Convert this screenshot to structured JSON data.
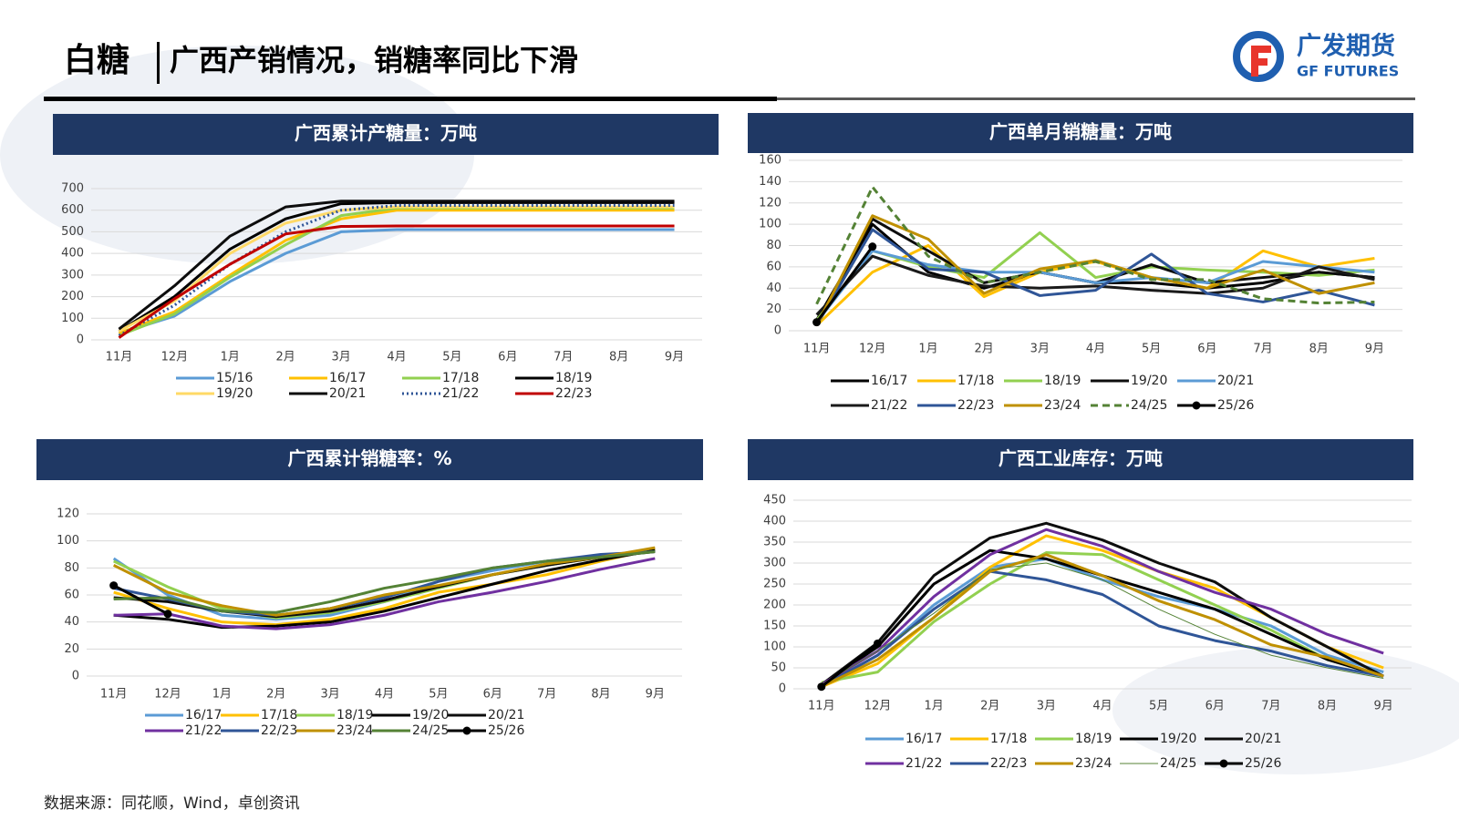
{
  "header": {
    "title": "白糖",
    "subtitle": "广西产销情况，销糖率同比下滑"
  },
  "logo": {
    "name": "广发期货",
    "en": "GF FUTURES"
  },
  "footer": {
    "source": "数据来源：同花顺，Wind，卓创资讯"
  },
  "chart_data": [
    {
      "type": "line",
      "title": "广西累计产糖量：万吨",
      "legend": "bottom",
      "grid": true,
      "categories": [
        "11月",
        "12月",
        "1月",
        "2月",
        "3月",
        "4月",
        "5月",
        "6月",
        "7月",
        "8月",
        "9月"
      ],
      "ylim": [
        0,
        700
      ],
      "yticks": [
        0,
        100,
        200,
        300,
        400,
        500,
        600,
        700
      ],
      "series": [
        {
          "name": "15/16",
          "color": "#5b9bd5",
          "values": [
            30,
            110,
            270,
            400,
            500,
            510,
            510,
            510,
            510,
            510,
            510
          ]
        },
        {
          "name": "16/17",
          "color": "#ffc000",
          "values": [
            30,
            130,
            300,
            460,
            560,
            600,
            600,
            600,
            600,
            600,
            600
          ]
        },
        {
          "name": "17/18",
          "color": "#92d050",
          "values": [
            20,
            120,
            290,
            440,
            575,
            610,
            610,
            610,
            610,
            610,
            610
          ]
        },
        {
          "name": "18/19",
          "color": "#000000",
          "values": [
            40,
            200,
            420,
            560,
            630,
            635,
            635,
            635,
            635,
            635,
            635
          ]
        },
        {
          "name": "19/20",
          "color": "#ffd966",
          "values": [
            40,
            180,
            400,
            540,
            600,
            615,
            615,
            615,
            615,
            615,
            615
          ]
        },
        {
          "name": "20/21",
          "color": "#0d0d0d",
          "values": [
            50,
            250,
            480,
            615,
            642,
            642,
            642,
            642,
            642,
            642,
            642
          ]
        },
        {
          "name": "21/22",
          "color": "#2f5597",
          "style": "dotted",
          "values": [
            20,
            160,
            350,
            500,
            600,
            622,
            622,
            622,
            622,
            622,
            622
          ]
        },
        {
          "name": "22/23",
          "color": "#c00000",
          "values": [
            10,
            190,
            350,
            490,
            525,
            527,
            527,
            527,
            527,
            527,
            527
          ]
        }
      ]
    },
    {
      "type": "line",
      "title": "广西单月销糖量：万吨",
      "legend": "bottom",
      "grid": true,
      "categories": [
        "11月",
        "12月",
        "1月",
        "2月",
        "3月",
        "4月",
        "5月",
        "6月",
        "7月",
        "8月",
        "9月"
      ],
      "ylim": [
        0,
        160
      ],
      "yticks": [
        0,
        20,
        40,
        60,
        80,
        100,
        120,
        140,
        160
      ],
      "series": [
        {
          "name": "16/17",
          "color": "#000000",
          "values": [
            10,
            100,
            55,
            40,
            55,
            45,
            45,
            40,
            45,
            55,
            50
          ]
        },
        {
          "name": "17/18",
          "color": "#ffc000",
          "values": [
            5,
            55,
            80,
            32,
            55,
            65,
            50,
            40,
            75,
            60,
            68
          ]
        },
        {
          "name": "18/19",
          "color": "#92d050",
          "values": [
            10,
            75,
            60,
            50,
            92,
            50,
            60,
            57,
            55,
            52,
            57
          ]
        },
        {
          "name": "19/20",
          "color": "#0d0d0d",
          "values": [
            5,
            105,
            75,
            45,
            55,
            45,
            62,
            45,
            50,
            55,
            50
          ]
        },
        {
          "name": "20/21",
          "color": "#5b9bd5",
          "values": [
            8,
            75,
            62,
            55,
            55,
            45,
            50,
            45,
            65,
            60,
            55
          ]
        },
        {
          "name": "21/22",
          "color": "#1a1a1a",
          "values": [
            15,
            70,
            52,
            42,
            40,
            42,
            38,
            35,
            40,
            60,
            48
          ]
        },
        {
          "name": "22/23",
          "color": "#2f5597",
          "values": [
            5,
            95,
            58,
            55,
            33,
            38,
            72,
            35,
            27,
            38,
            24
          ]
        },
        {
          "name": "23/24",
          "color": "#bf9000",
          "values": [
            5,
            108,
            86,
            35,
            58,
            66,
            50,
            40,
            57,
            35,
            45
          ]
        },
        {
          "name": "24/25",
          "color": "#548235",
          "style": "dashed",
          "values": [
            25,
            135,
            70,
            45,
            55,
            65,
            48,
            48,
            30,
            26,
            27
          ]
        },
        {
          "name": "25/26",
          "color": "#000000",
          "markers": true,
          "values": [
            8,
            79,
            null,
            null,
            null,
            null,
            null,
            null,
            null,
            null,
            null
          ]
        }
      ]
    },
    {
      "type": "line",
      "title": "广西累计销糖率：%",
      "legend": "bottom",
      "grid": true,
      "categories": [
        "11月",
        "12月",
        "1月",
        "2月",
        "3月",
        "4月",
        "5月",
        "6月",
        "7月",
        "8月",
        "9月"
      ],
      "ylim": [
        0,
        120
      ],
      "yticks": [
        0,
        20,
        40,
        60,
        80,
        100,
        120
      ],
      "series": [
        {
          "name": "16/17",
          "color": "#5b9bd5",
          "values": [
            87,
            60,
            45,
            42,
            45,
            55,
            70,
            78,
            85,
            89,
            93
          ]
        },
        {
          "name": "17/18",
          "color": "#ffc000",
          "values": [
            62,
            50,
            40,
            38,
            42,
            50,
            62,
            68,
            75,
            85,
            94
          ]
        },
        {
          "name": "18/19",
          "color": "#92d050",
          "values": [
            85,
            66,
            50,
            43,
            47,
            55,
            65,
            75,
            82,
            88,
            93
          ]
        },
        {
          "name": "19/20",
          "color": "#000000",
          "values": [
            45,
            42,
            36,
            37,
            40,
            48,
            58,
            68,
            78,
            86,
            93
          ]
        },
        {
          "name": "20/21",
          "color": "#0d0d0d",
          "values": [
            58,
            55,
            48,
            44,
            48,
            56,
            66,
            75,
            82,
            88,
            92
          ]
        },
        {
          "name": "21/22",
          "color": "#7030a0",
          "values": [
            45,
            46,
            37,
            35,
            38,
            45,
            55,
            62,
            70,
            79,
            87
          ]
        },
        {
          "name": "22/23",
          "color": "#2f5597",
          "values": [
            65,
            57,
            48,
            45,
            50,
            58,
            70,
            80,
            85,
            90,
            92
          ]
        },
        {
          "name": "23/24",
          "color": "#bf9000",
          "values": [
            82,
            62,
            52,
            45,
            50,
            60,
            67,
            75,
            83,
            88,
            95
          ]
        },
        {
          "name": "24/25",
          "color": "#548235",
          "values": [
            57,
            58,
            48,
            47,
            55,
            65,
            72,
            80,
            85,
            88,
            92
          ]
        },
        {
          "name": "25/26",
          "color": "#000000",
          "markers": true,
          "values": [
            67,
            46,
            null,
            null,
            null,
            null,
            null,
            null,
            null,
            null,
            null
          ]
        }
      ]
    },
    {
      "type": "line",
      "title": "广西工业库存：万吨",
      "legend": "bottom",
      "grid": true,
      "categories": [
        "11月",
        "12月",
        "1月",
        "2月",
        "3月",
        "4月",
        "5月",
        "6月",
        "7月",
        "8月",
        "9月"
      ],
      "ylim": [
        0,
        450
      ],
      "yticks": [
        0,
        50,
        100,
        150,
        200,
        250,
        300,
        350,
        400,
        450
      ],
      "series": [
        {
          "name": "16/17",
          "color": "#5b9bd5",
          "values": [
            5,
            80,
            200,
            290,
            310,
            260,
            220,
            190,
            150,
            80,
            40
          ]
        },
        {
          "name": "17/18",
          "color": "#ffc000",
          "values": [
            5,
            60,
            170,
            290,
            365,
            330,
            280,
            240,
            170,
            100,
            50
          ]
        },
        {
          "name": "18/19",
          "color": "#92d050",
          "values": [
            15,
            40,
            160,
            250,
            325,
            320,
            260,
            200,
            140,
            70,
            30
          ]
        },
        {
          "name": "19/20",
          "color": "#000000",
          "values": [
            10,
            100,
            250,
            330,
            310,
            270,
            230,
            190,
            130,
            70,
            30
          ]
        },
        {
          "name": "20/21",
          "color": "#0d0d0d",
          "values": [
            10,
            110,
            270,
            360,
            395,
            355,
            300,
            255,
            170,
            100,
            30
          ]
        },
        {
          "name": "21/22",
          "color": "#7030a0",
          "values": [
            10,
            90,
            220,
            320,
            380,
            340,
            280,
            230,
            190,
            130,
            85
          ]
        },
        {
          "name": "22/23",
          "color": "#2f5597",
          "values": [
            5,
            80,
            190,
            280,
            260,
            225,
            150,
            115,
            90,
            55,
            30
          ]
        },
        {
          "name": "23/24",
          "color": "#bf9000",
          "values": [
            5,
            70,
            170,
            280,
            320,
            270,
            210,
            165,
            105,
            75,
            30
          ]
        },
        {
          "name": "24/25",
          "color": "#548235",
          "style": "thin",
          "values": [
            10,
            90,
            180,
            285,
            300,
            260,
            190,
            130,
            80,
            50,
            25
          ]
        },
        {
          "name": "25/26",
          "color": "#000000",
          "markers": true,
          "values": [
            5,
            108,
            null,
            null,
            null,
            null,
            null,
            null,
            null,
            null,
            null
          ]
        }
      ]
    }
  ]
}
